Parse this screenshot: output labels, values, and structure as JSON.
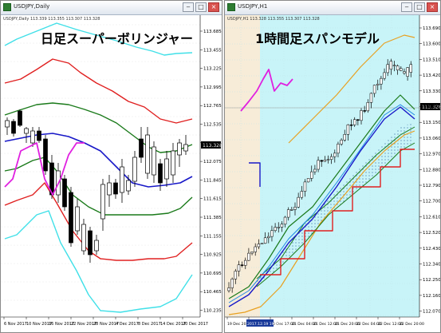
{
  "left": {
    "window_title": "USDJPY,Daily",
    "overlay_title": "日足スーパーボリンジャー",
    "info": "USDJPY,Daily 113.339 113.355 113.307 113.328",
    "price_badge": "113.328",
    "y_labels": [
      "113.685",
      "113.455",
      "113.225",
      "112.995",
      "112.765",
      "112.535",
      "112.305",
      "112.075",
      "111.845",
      "111.615",
      "111.385",
      "111.155",
      "110.925",
      "110.695",
      "110.465",
      "110.235"
    ],
    "x_labels": [
      "6 Nov 2017",
      "10 Nov 2017",
      "16 Nov 2017",
      "22 Nov 2017",
      "28 Nov 2017",
      "4 Dec 2017",
      "8 Dec 2017",
      "14 Dec 2017",
      "20 Dec 2017"
    ]
  },
  "right": {
    "window_title": "USDJPY,H1",
    "overlay_title": "1時間足スパンモデル",
    "info": "USDJPY,H1 113.328 113.355 113.307 113.328",
    "price_badge": "113.328",
    "y_labels": [
      "113.690",
      "113.600",
      "113.510",
      "113.420",
      "113.330",
      "113.240",
      "113.150",
      "113.060",
      "112.970",
      "112.880",
      "112.790",
      "112.700",
      "112.610",
      "112.520",
      "112.430",
      "112.340",
      "112.250",
      "112.160",
      "112.070"
    ],
    "x_labels": [
      "19 Dec 2017",
      "20 Dec 09:00",
      "20 Dec 17:00",
      "21 Dec 04:00",
      "21 Dec 12:00",
      "21 Dec 20:00",
      "22 Dec 04:00",
      "22 Dec 12:00",
      "22 Dec 20:00"
    ],
    "x_highlight": "2017.12.19 19:00"
  },
  "buttons": {
    "minimize": "‒",
    "maximize": "□",
    "close": "×"
  }
}
